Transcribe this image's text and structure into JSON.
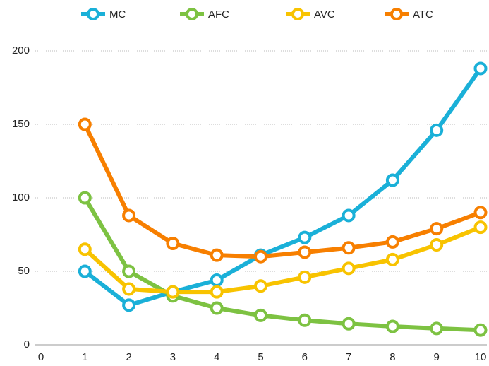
{
  "chart_data": {
    "type": "line",
    "x": [
      1,
      2,
      3,
      4,
      5,
      6,
      7,
      8,
      9,
      10
    ],
    "series": [
      {
        "name": "MC",
        "color": "#1ab0d8",
        "values": [
          50,
          27,
          36,
          44,
          61,
          73,
          88,
          112,
          146,
          188
        ]
      },
      {
        "name": "AFC",
        "color": "#7dc242",
        "values": [
          100,
          50,
          33.3,
          25,
          20,
          16.7,
          14.3,
          12.5,
          11.1,
          10
        ]
      },
      {
        "name": "AVC",
        "color": "#f8c300",
        "values": [
          65,
          38,
          36,
          36,
          40,
          46,
          52,
          58,
          68,
          80
        ]
      },
      {
        "name": "ATC",
        "color": "#f77f00",
        "values": [
          150,
          88,
          69,
          61,
          60,
          63,
          66,
          70,
          79,
          90
        ]
      }
    ],
    "xlim": [
      0,
      10
    ],
    "xticks": [
      0,
      1,
      2,
      3,
      4,
      5,
      6,
      7,
      8,
      9,
      10
    ],
    "ylim": [
      0,
      200
    ],
    "yticks": [
      0,
      50,
      100,
      150,
      200
    ],
    "grid": true,
    "legend": "top"
  }
}
